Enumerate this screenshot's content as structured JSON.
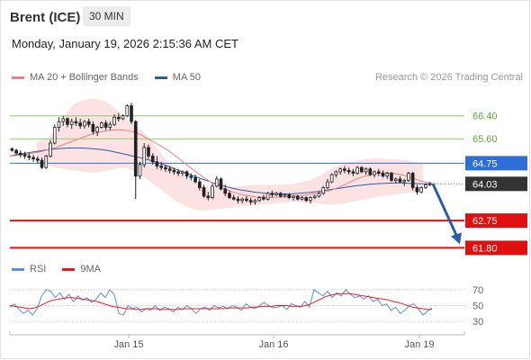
{
  "header": {
    "instrument": "Brent (ICE)",
    "timeframe": "30 MIN"
  },
  "datetime": "Monday, January 19, 2026 2:15:36 AM CET",
  "price_legend": [
    {
      "label": "MA 20 + Bollinger Bands",
      "color": "#f08080"
    },
    {
      "label": "MA 50",
      "color": "#2b5ca8"
    }
  ],
  "credit": "Research © 2026 Trading Central",
  "rsi_legend": [
    {
      "label": "RSI",
      "color": "#5b8fd9"
    },
    {
      "label": "9MA",
      "color": "#e02020"
    }
  ],
  "chart_data": [
    {
      "type": "candlestick",
      "x_labels": [
        "Jan 15",
        "Jan 16",
        "Jan 19"
      ],
      "price_range": [
        61.5,
        67.3
      ],
      "levels": [
        {
          "value": 66.4,
          "label": "66.40",
          "kind": "resistance",
          "color": "#8fc96a"
        },
        {
          "value": 65.6,
          "label": "65.60",
          "kind": "resistance",
          "color": "#8fc96a"
        },
        {
          "value": 64.75,
          "label": "64.75",
          "kind": "pivot",
          "color": "#2f6ed8"
        },
        {
          "value": 64.03,
          "label": "64.03",
          "kind": "last_price",
          "color": "#333333"
        },
        {
          "value": 62.75,
          "label": "62.75",
          "kind": "support",
          "color": "#e01010"
        },
        {
          "value": 61.8,
          "label": "61.80",
          "kind": "support",
          "color": "#e01010"
        }
      ],
      "arrow": {
        "from": 64.03,
        "to": 61.8,
        "color": "#2b5ca8"
      },
      "candles": [
        [
          65.25,
          65.3,
          65.15,
          65.2
        ],
        [
          65.2,
          65.25,
          65.05,
          65.1
        ],
        [
          65.1,
          65.2,
          64.95,
          65.05
        ],
        [
          65.05,
          65.15,
          64.9,
          65.0
        ],
        [
          65.0,
          65.1,
          64.85,
          64.95
        ],
        [
          64.95,
          65.05,
          64.8,
          64.9
        ],
        [
          64.9,
          65.0,
          64.75,
          64.85
        ],
        [
          64.85,
          64.95,
          64.55,
          64.6
        ],
        [
          64.6,
          65.05,
          64.55,
          65.0
        ],
        [
          65.0,
          65.55,
          64.95,
          65.45
        ],
        [
          65.45,
          66.1,
          65.4,
          66.0
        ],
        [
          66.0,
          66.35,
          65.85,
          66.2
        ],
        [
          66.2,
          66.4,
          66.05,
          66.3
        ],
        [
          66.3,
          66.35,
          66.0,
          66.1
        ],
        [
          66.1,
          66.3,
          65.95,
          66.2
        ],
        [
          66.2,
          66.35,
          66.05,
          66.15
        ],
        [
          66.15,
          66.3,
          65.95,
          66.05
        ],
        [
          66.05,
          66.25,
          65.95,
          66.2
        ],
        [
          66.2,
          66.3,
          66.0,
          66.1
        ],
        [
          66.1,
          66.2,
          65.75,
          65.85
        ],
        [
          65.85,
          66.05,
          65.7,
          66.0
        ],
        [
          66.0,
          66.2,
          65.95,
          66.15
        ],
        [
          66.15,
          66.25,
          65.9,
          66.0
        ],
        [
          66.0,
          66.2,
          65.9,
          66.1
        ],
        [
          66.1,
          66.45,
          66.05,
          66.35
        ],
        [
          66.35,
          66.5,
          66.2,
          66.3
        ],
        [
          66.3,
          66.45,
          66.25,
          66.4
        ],
        [
          66.4,
          66.8,
          66.35,
          66.75
        ],
        [
          66.75,
          66.85,
          66.1,
          66.2
        ],
        [
          66.2,
          66.25,
          63.5,
          64.3
        ],
        [
          64.3,
          64.8,
          64.2,
          64.7
        ],
        [
          64.7,
          65.45,
          64.6,
          65.3
        ],
        [
          65.3,
          65.4,
          64.9,
          65.0
        ],
        [
          65.0,
          65.1,
          64.7,
          64.8
        ],
        [
          64.8,
          65.0,
          64.55,
          64.65
        ],
        [
          64.65,
          64.8,
          64.5,
          64.6
        ],
        [
          64.6,
          64.7,
          64.45,
          64.55
        ],
        [
          64.55,
          64.65,
          64.4,
          64.5
        ],
        [
          64.5,
          64.6,
          64.35,
          64.45
        ],
        [
          64.45,
          64.55,
          64.3,
          64.4
        ],
        [
          64.4,
          64.5,
          64.3,
          64.45
        ],
        [
          64.45,
          64.5,
          64.2,
          64.3
        ],
        [
          64.3,
          64.4,
          64.15,
          64.25
        ],
        [
          64.25,
          64.35,
          64.05,
          64.1
        ],
        [
          64.1,
          64.2,
          63.8,
          63.9
        ],
        [
          63.9,
          64.0,
          63.55,
          63.6
        ],
        [
          63.6,
          63.75,
          63.45,
          63.55
        ],
        [
          63.55,
          64.05,
          63.5,
          63.95
        ],
        [
          63.95,
          64.3,
          63.9,
          64.2
        ],
        [
          64.2,
          64.25,
          63.8,
          63.85
        ],
        [
          63.85,
          64.0,
          63.6,
          63.7
        ],
        [
          63.7,
          63.8,
          63.5,
          63.55
        ],
        [
          63.55,
          63.65,
          63.45,
          63.5
        ],
        [
          63.5,
          63.6,
          63.35,
          63.45
        ],
        [
          63.45,
          63.55,
          63.35,
          63.5
        ],
        [
          63.5,
          63.6,
          63.4,
          63.45
        ],
        [
          63.45,
          63.55,
          63.3,
          63.4
        ],
        [
          63.4,
          63.5,
          63.3,
          63.45
        ],
        [
          63.45,
          63.6,
          63.4,
          63.55
        ],
        [
          63.55,
          63.65,
          63.45,
          63.5
        ],
        [
          63.5,
          63.75,
          63.45,
          63.7
        ],
        [
          63.7,
          63.8,
          63.55,
          63.65
        ],
        [
          63.65,
          63.75,
          63.6,
          63.7
        ],
        [
          63.7,
          63.75,
          63.55,
          63.6
        ],
        [
          63.6,
          63.7,
          63.55,
          63.65
        ],
        [
          63.65,
          63.7,
          63.5,
          63.55
        ],
        [
          63.55,
          63.65,
          63.45,
          63.6
        ],
        [
          63.6,
          63.65,
          63.45,
          63.5
        ],
        [
          63.5,
          63.6,
          63.45,
          63.55
        ],
        [
          63.55,
          63.6,
          63.4,
          63.45
        ],
        [
          63.45,
          63.6,
          63.35,
          63.55
        ],
        [
          63.55,
          63.65,
          63.5,
          63.6
        ],
        [
          63.6,
          63.75,
          63.55,
          63.7
        ],
        [
          63.7,
          63.95,
          63.65,
          63.9
        ],
        [
          63.9,
          64.2,
          63.85,
          64.1
        ],
        [
          64.1,
          64.4,
          64.05,
          64.35
        ],
        [
          64.35,
          64.5,
          64.25,
          64.45
        ],
        [
          64.45,
          64.6,
          64.35,
          64.55
        ],
        [
          64.55,
          64.65,
          64.4,
          64.5
        ],
        [
          64.5,
          64.6,
          64.35,
          64.45
        ],
        [
          64.45,
          64.55,
          64.3,
          64.4
        ],
        [
          64.4,
          64.65,
          64.35,
          64.6
        ],
        [
          64.6,
          64.65,
          64.4,
          64.45
        ],
        [
          64.45,
          64.6,
          64.35,
          64.55
        ],
        [
          64.55,
          64.6,
          64.3,
          64.35
        ],
        [
          64.35,
          64.5,
          64.25,
          64.45
        ],
        [
          64.45,
          64.55,
          64.3,
          64.4
        ],
        [
          64.4,
          64.5,
          64.25,
          64.3
        ],
        [
          64.3,
          64.45,
          64.2,
          64.4
        ],
        [
          64.4,
          64.45,
          64.1,
          64.15
        ],
        [
          64.15,
          64.25,
          64.05,
          64.2
        ],
        [
          64.2,
          64.3,
          64.05,
          64.1
        ],
        [
          64.1,
          64.2,
          63.95,
          64.15
        ],
        [
          64.15,
          64.45,
          64.1,
          64.4
        ],
        [
          64.4,
          64.45,
          63.8,
          63.9
        ],
        [
          63.9,
          64.0,
          63.65,
          63.75
        ],
        [
          63.75,
          63.95,
          63.7,
          63.9
        ],
        [
          63.9,
          64.05,
          63.85,
          64.0
        ],
        [
          64.0,
          64.1,
          63.95,
          64.03
        ]
      ],
      "ma20": [
        65.0,
        65.02,
        65.05,
        65.1,
        65.15,
        65.22,
        65.3,
        65.4,
        65.5,
        65.6,
        65.7,
        65.78,
        65.85,
        65.9,
        65.92,
        65.9,
        65.85,
        65.75,
        65.6,
        65.45,
        65.3,
        65.12,
        64.92,
        64.7,
        64.5,
        64.3,
        64.12,
        63.98,
        63.85,
        63.75,
        63.67,
        63.62,
        63.58,
        63.56,
        63.56,
        63.57,
        63.58,
        63.6,
        63.63,
        63.66,
        63.7,
        63.75,
        63.82,
        63.92,
        64.05,
        64.18,
        64.28,
        64.35,
        64.4,
        64.42,
        64.4,
        64.35,
        64.28,
        64.18,
        64.1,
        64.05
      ],
      "ma50": [
        65.0,
        65.05,
        65.1,
        65.14,
        65.18,
        65.22,
        65.25,
        65.27,
        65.28,
        65.28,
        65.27,
        65.25,
        65.22,
        65.18,
        65.12,
        65.06,
        65.0,
        64.94,
        64.87,
        64.79,
        64.7,
        64.6,
        64.5,
        64.4,
        64.3,
        64.2,
        64.11,
        64.02,
        63.95,
        63.88,
        63.82,
        63.78,
        63.74,
        63.71,
        63.69,
        63.68,
        63.68,
        63.69,
        63.71,
        63.73,
        63.76,
        63.8,
        63.84,
        63.88,
        63.92,
        63.96,
        63.99,
        64.02,
        64.04,
        64.05,
        64.06,
        64.06,
        64.05,
        64.04,
        64.03,
        64.03
      ],
      "bb_upper": [
        65.5,
        65.6,
        65.85,
        66.4,
        66.8,
        66.95,
        67.0,
        66.95,
        66.8,
        66.5,
        66.2,
        66.0,
        65.7,
        65.3,
        64.9,
        64.55,
        64.3,
        64.1,
        63.95,
        63.9,
        63.9,
        63.92,
        63.95,
        63.98,
        64.0,
        64.0,
        64.0,
        64.0,
        64.05,
        64.1,
        64.2,
        64.35,
        64.55,
        64.7,
        64.8,
        64.85,
        64.9,
        64.92,
        64.9,
        64.88,
        64.85,
        64.8,
        64.75
      ],
      "bb_lower": [
        64.8,
        64.7,
        64.6,
        64.55,
        64.5,
        64.45,
        64.42,
        64.45,
        64.52,
        64.6,
        64.55,
        64.4,
        64.2,
        63.95,
        63.7,
        63.45,
        63.28,
        63.15,
        63.1,
        63.12,
        63.16,
        63.2,
        63.24,
        63.27,
        63.3,
        63.32,
        63.35,
        63.38,
        63.4,
        63.38,
        63.35,
        63.32,
        63.3,
        63.32,
        63.38,
        63.45,
        63.52,
        63.58,
        63.62,
        63.66,
        63.7,
        63.75,
        63.8
      ]
    },
    {
      "type": "line",
      "name": "RSI",
      "y_ticks": [
        70,
        50,
        30
      ],
      "ylim": [
        20,
        80
      ],
      "rsi": [
        48,
        52,
        45,
        40,
        44,
        38,
        46,
        62,
        70,
        68,
        60,
        66,
        58,
        64,
        55,
        62,
        57,
        60,
        54,
        58,
        66,
        60,
        70,
        64,
        40,
        38,
        50,
        46,
        48,
        42,
        46,
        44,
        50,
        44,
        48,
        46,
        42,
        48,
        45,
        50,
        46,
        40,
        46,
        48,
        44,
        50,
        47,
        49,
        46,
        50,
        48,
        44,
        52,
        48,
        46,
        50,
        54,
        50,
        47,
        48,
        50,
        45,
        52,
        50,
        48,
        55,
        48,
        70,
        66,
        62,
        68,
        60,
        66,
        62,
        70,
        64,
        60,
        62,
        58,
        62,
        55,
        58,
        50,
        52,
        44,
        48,
        40,
        44,
        50,
        52,
        46,
        38,
        43,
        47
      ],
      "ma9": [
        50,
        49,
        48,
        47,
        46,
        47,
        49,
        52,
        55,
        57,
        58,
        59,
        60,
        60,
        59,
        58,
        57,
        56,
        55,
        53,
        51,
        49,
        48,
        47,
        46,
        46,
        45,
        45,
        46,
        46,
        46,
        45,
        45,
        45,
        45,
        45,
        46,
        46,
        46,
        46,
        46,
        46,
        46,
        46,
        46,
        47,
        47,
        47,
        47,
        47,
        48,
        48,
        49,
        49,
        49,
        50,
        50,
        50,
        49,
        49,
        49,
        50,
        52,
        55,
        58,
        61,
        63,
        64,
        65,
        65,
        65,
        64,
        63,
        62,
        61,
        60,
        59,
        58,
        57,
        55,
        54,
        52,
        50,
        48,
        47,
        46,
        45,
        45
      ]
    }
  ]
}
